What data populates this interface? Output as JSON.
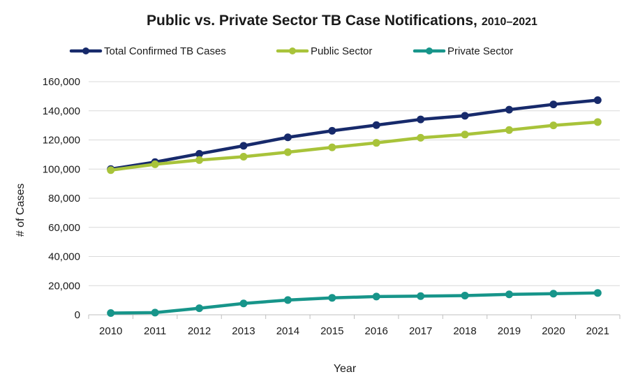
{
  "chart_data": {
    "type": "line",
    "title": "Public vs. Private Sector TB Case Notifications,",
    "subtitle": "2010–2021",
    "xlabel": "Year",
    "ylabel": "# of Cases",
    "ylim": [
      0,
      160000
    ],
    "yticks": [
      0,
      20000,
      40000,
      60000,
      80000,
      100000,
      120000,
      140000,
      160000
    ],
    "ytick_labels": [
      "0",
      "20,000",
      "40,000",
      "60,000",
      "80,000",
      "100,000",
      "120,000",
      "140,000",
      "160,000"
    ],
    "categories": [
      "2010",
      "2011",
      "2012",
      "2013",
      "2014",
      "2015",
      "2016",
      "2017",
      "2018",
      "2019",
      "2020",
      "2021"
    ],
    "grid": true,
    "legend_position": "top",
    "series": [
      {
        "name": "Total Confirmed TB Cases",
        "color": "#172a6b",
        "values": [
          100000,
          104800,
          110500,
          116000,
          121800,
          126300,
          130200,
          134100,
          136600,
          140800,
          144400,
          147300
        ]
      },
      {
        "name": "Public Sector",
        "color": "#a8c33a",
        "values": [
          99300,
          103300,
          106200,
          108500,
          111600,
          114900,
          118000,
          121500,
          123700,
          126800,
          130000,
          132300
        ]
      },
      {
        "name": "Private Sector",
        "color": "#17958a",
        "values": [
          1200,
          1500,
          4500,
          7800,
          10100,
          11600,
          12500,
          12800,
          13200,
          14000,
          14500,
          15000
        ]
      }
    ]
  }
}
